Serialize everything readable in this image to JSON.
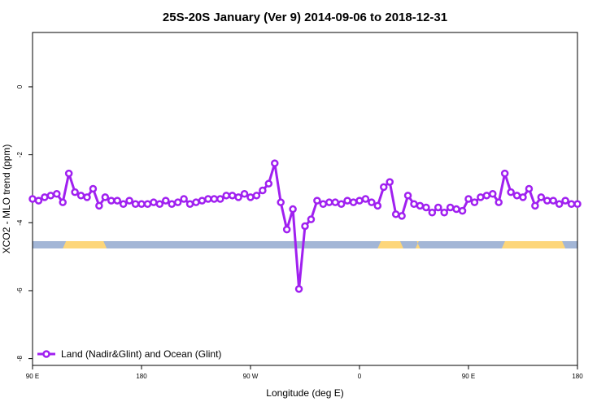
{
  "chart_data": {
    "type": "line",
    "title": "25S-20S January (Ver 9)   2014-09-06 to 2018-12-31",
    "xlabel": "Longitude (deg E)",
    "ylabel": "XCO2 - MLO trend (ppm)",
    "xlim": [
      0,
      360
    ],
    "ylim": [
      -8.2,
      1.6
    ],
    "x_ticks": [
      {
        "value": 0,
        "label": "90 E"
      },
      {
        "value": 72,
        "label": "180"
      },
      {
        "value": 144,
        "label": "90 W"
      },
      {
        "value": 216,
        "label": "0"
      },
      {
        "value": 288,
        "label": "90 E"
      },
      {
        "value": 360,
        "label": "180"
      }
    ],
    "y_ticks": [
      0,
      -2,
      -4,
      -6,
      -8
    ],
    "grid": false,
    "legend_position": "bottom-left",
    "series": [
      {
        "name": "Land (Nadir&Glint) and Ocean (Glint)",
        "color": "#a020f0",
        "x": [
          0,
          4,
          8,
          12,
          16,
          20,
          24,
          28,
          32,
          36,
          40,
          44,
          48,
          52,
          56,
          60,
          64,
          68,
          72,
          76,
          80,
          84,
          88,
          92,
          96,
          100,
          104,
          108,
          112,
          116,
          120,
          124,
          128,
          132,
          136,
          140,
          144,
          148,
          152,
          156,
          160,
          164,
          168,
          172,
          176,
          180,
          184,
          188,
          192,
          196,
          200,
          204,
          208,
          212,
          216,
          220,
          224,
          228,
          232,
          236,
          240,
          244,
          248,
          252,
          256,
          260,
          264,
          268,
          272,
          276,
          280,
          284,
          288,
          292,
          296,
          300,
          304,
          308,
          312,
          316,
          320,
          324,
          328,
          332,
          336,
          340,
          344,
          348,
          352,
          356,
          360
        ],
        "y": [
          -3.3,
          -3.35,
          -3.25,
          -3.2,
          -3.15,
          -3.4,
          -2.55,
          -3.1,
          -3.2,
          -3.25,
          -3.0,
          -3.5,
          -3.25,
          -3.35,
          -3.35,
          -3.45,
          -3.35,
          -3.45,
          -3.45,
          -3.45,
          -3.4,
          -3.45,
          -3.35,
          -3.45,
          -3.4,
          -3.3,
          -3.45,
          -3.4,
          -3.35,
          -3.3,
          -3.3,
          -3.3,
          -3.2,
          -3.2,
          -3.25,
          -3.15,
          -3.25,
          -3.2,
          -3.05,
          -2.85,
          -2.25,
          -3.4,
          -4.2,
          -3.6,
          -5.95,
          -4.1,
          -3.9,
          -3.35,
          -3.45,
          -3.4,
          -3.4,
          -3.45,
          -3.35,
          -3.4,
          -3.35,
          -3.3,
          -3.4,
          -3.5,
          -2.95,
          -2.8,
          -3.75,
          -3.8,
          -3.2,
          -3.45,
          -3.5,
          -3.55,
          -3.7,
          -3.55,
          -3.7,
          -3.55,
          -3.6,
          -3.65,
          -3.3,
          -3.4,
          -3.25,
          -3.2,
          -3.15,
          -3.4,
          -2.55,
          -3.1,
          -3.2,
          -3.25,
          -3.0,
          -3.5,
          -3.25,
          -3.35,
          -3.35,
          -3.45,
          -3.35,
          -3.45,
          -3.45
        ]
      }
    ],
    "surface_band": {
      "y_value": -4.65,
      "ocean_color": "#a3b6d6",
      "land_color": "#fdd67a",
      "land_segments": [
        [
          20,
          49
        ],
        [
          228,
          245
        ],
        [
          253,
          256
        ],
        [
          310,
          352
        ]
      ]
    }
  }
}
